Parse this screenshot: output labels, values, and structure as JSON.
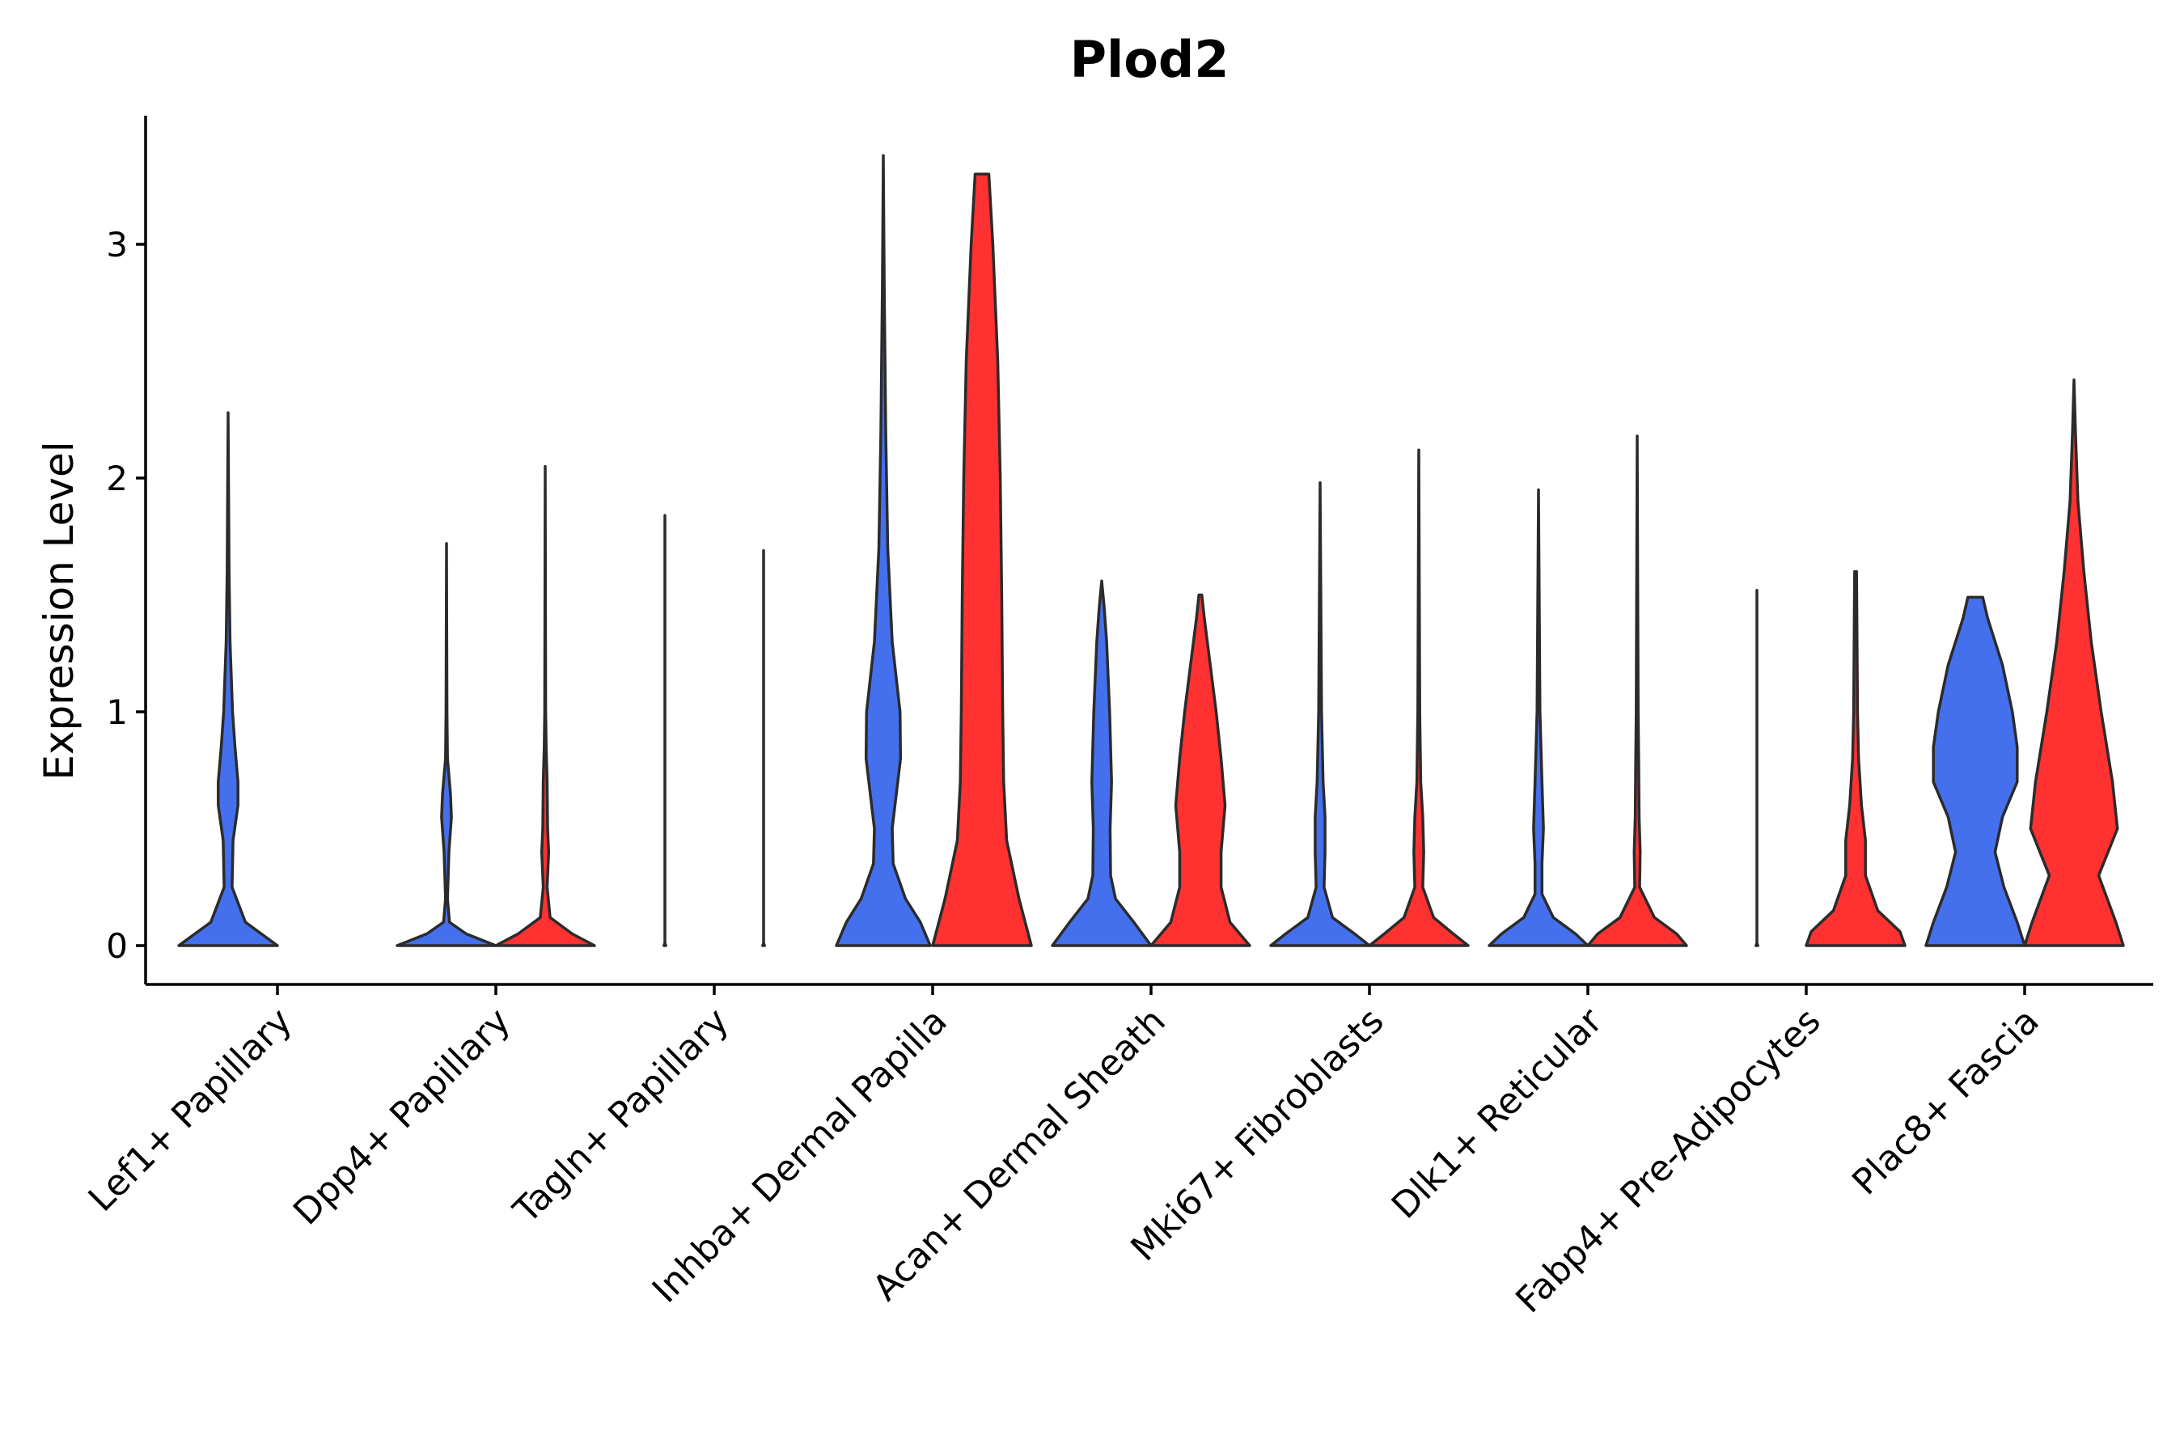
{
  "chart_data": {
    "type": "violin",
    "title": "Plod2",
    "xlabel": "",
    "ylabel": "Expression Level",
    "ylim": [
      -0.17,
      3.55
    ],
    "yticks": [
      0,
      1,
      2,
      3
    ],
    "colors": {
      "group1": "#4470EE",
      "group2": "#FF3131"
    },
    "categories": [
      "Lef1+ Papillary",
      "Dpp4+ Papillary",
      "Tagln+ Papillary",
      "Inhba+ Dermal Papilla",
      "Acan+ Dermal Sheath",
      "Mki67+ Fibroblasts",
      "Dlk1+ Reticular",
      "Fabp4+ Pre-Adipocytes",
      "Plac8+ Fascia"
    ],
    "violins": [
      {
        "category": "Lef1+ Papillary",
        "group": "group1",
        "max": 2.28,
        "profile": [
          [
            0,
            1.0
          ],
          [
            0.1,
            0.35
          ],
          [
            0.25,
            0.08
          ],
          [
            0.45,
            0.1
          ],
          [
            0.6,
            0.2
          ],
          [
            0.7,
            0.2
          ],
          [
            0.85,
            0.14
          ],
          [
            1.0,
            0.09
          ],
          [
            1.3,
            0.04
          ],
          [
            1.6,
            0.02
          ],
          [
            2.28,
            0.0
          ]
        ]
      },
      {
        "category": "Dpp4+ Papillary",
        "group": "group1",
        "max": 1.72,
        "profile": [
          [
            0,
            1.0
          ],
          [
            0.05,
            0.4
          ],
          [
            0.1,
            0.06
          ],
          [
            0.2,
            0.02
          ],
          [
            0.4,
            0.05
          ],
          [
            0.55,
            0.1
          ],
          [
            0.65,
            0.08
          ],
          [
            0.8,
            0.02
          ],
          [
            1.0,
            0.01
          ],
          [
            1.72,
            0.0
          ]
        ]
      },
      {
        "category": "Dpp4+ Papillary",
        "group": "group2",
        "max": 2.05,
        "profile": [
          [
            0,
            1.0
          ],
          [
            0.05,
            0.55
          ],
          [
            0.12,
            0.1
          ],
          [
            0.25,
            0.04
          ],
          [
            0.4,
            0.07
          ],
          [
            0.5,
            0.05
          ],
          [
            0.7,
            0.04
          ],
          [
            0.85,
            0.02
          ],
          [
            1.0,
            0.01
          ],
          [
            2.05,
            0.0
          ]
        ]
      },
      {
        "category": "Tagln+ Papillary",
        "group": "group1",
        "max": 1.84,
        "profile": [
          [
            0,
            0.02
          ],
          [
            0.01,
            0.0
          ],
          [
            1.84,
            0.0
          ]
        ]
      },
      {
        "category": "Tagln+ Papillary",
        "group": "group2",
        "max": 1.69,
        "profile": [
          [
            0,
            0.02
          ],
          [
            0.01,
            0.0
          ],
          [
            1.69,
            0.0
          ]
        ]
      },
      {
        "category": "Inhba+ Dermal Papilla",
        "group": "group1",
        "max": 3.38,
        "profile": [
          [
            0,
            0.95
          ],
          [
            0.1,
            0.75
          ],
          [
            0.2,
            0.45
          ],
          [
            0.35,
            0.2
          ],
          [
            0.5,
            0.18
          ],
          [
            0.8,
            0.35
          ],
          [
            1.0,
            0.34
          ],
          [
            1.3,
            0.18
          ],
          [
            1.7,
            0.09
          ],
          [
            2.2,
            0.05
          ],
          [
            2.8,
            0.02
          ],
          [
            3.38,
            0.0
          ]
        ]
      },
      {
        "category": "Inhba+ Dermal Papilla",
        "group": "group2",
        "max": 3.3,
        "profile": [
          [
            0,
            1.0
          ],
          [
            0.2,
            0.75
          ],
          [
            0.45,
            0.5
          ],
          [
            0.7,
            0.44
          ],
          [
            1.0,
            0.42
          ],
          [
            1.5,
            0.4
          ],
          [
            2.0,
            0.37
          ],
          [
            2.5,
            0.32
          ],
          [
            3.0,
            0.22
          ],
          [
            3.3,
            0.14
          ]
        ]
      },
      {
        "category": "Acan+ Dermal Sheath",
        "group": "group1",
        "max": 1.56,
        "profile": [
          [
            0,
            1.0
          ],
          [
            0.1,
            0.65
          ],
          [
            0.2,
            0.28
          ],
          [
            0.3,
            0.18
          ],
          [
            0.5,
            0.17
          ],
          [
            0.7,
            0.2
          ],
          [
            1.0,
            0.16
          ],
          [
            1.3,
            0.1
          ],
          [
            1.45,
            0.05
          ],
          [
            1.56,
            0.0
          ]
        ]
      },
      {
        "category": "Acan+ Dermal Sheath",
        "group": "group2",
        "max": 1.5,
        "profile": [
          [
            0,
            1.0
          ],
          [
            0.1,
            0.6
          ],
          [
            0.25,
            0.42
          ],
          [
            0.4,
            0.42
          ],
          [
            0.6,
            0.5
          ],
          [
            0.8,
            0.42
          ],
          [
            1.0,
            0.32
          ],
          [
            1.2,
            0.2
          ],
          [
            1.4,
            0.08
          ],
          [
            1.5,
            0.03
          ]
        ]
      },
      {
        "category": "Mki67+ Fibroblasts",
        "group": "group1",
        "max": 1.98,
        "profile": [
          [
            0,
            1.0
          ],
          [
            0.05,
            0.7
          ],
          [
            0.12,
            0.25
          ],
          [
            0.25,
            0.08
          ],
          [
            0.4,
            0.1
          ],
          [
            0.55,
            0.1
          ],
          [
            0.7,
            0.06
          ],
          [
            1.0,
            0.03
          ],
          [
            1.98,
            0.0
          ]
        ]
      },
      {
        "category": "Mki67+ Fibroblasts",
        "group": "group2",
        "max": 2.12,
        "profile": [
          [
            0,
            1.0
          ],
          [
            0.05,
            0.7
          ],
          [
            0.12,
            0.3
          ],
          [
            0.25,
            0.08
          ],
          [
            0.4,
            0.1
          ],
          [
            0.55,
            0.08
          ],
          [
            0.7,
            0.04
          ],
          [
            1.0,
            0.02
          ],
          [
            2.12,
            0.0
          ]
        ]
      },
      {
        "category": "Dlk1+ Reticular",
        "group": "group1",
        "max": 1.95,
        "profile": [
          [
            0,
            1.0
          ],
          [
            0.05,
            0.75
          ],
          [
            0.12,
            0.3
          ],
          [
            0.22,
            0.07
          ],
          [
            0.35,
            0.07
          ],
          [
            0.5,
            0.1
          ],
          [
            0.7,
            0.07
          ],
          [
            1.0,
            0.03
          ],
          [
            1.95,
            0.0
          ]
        ]
      },
      {
        "category": "Dlk1+ Reticular",
        "group": "group2",
        "max": 2.18,
        "profile": [
          [
            0,
            1.0
          ],
          [
            0.05,
            0.8
          ],
          [
            0.12,
            0.35
          ],
          [
            0.25,
            0.05
          ],
          [
            0.4,
            0.06
          ],
          [
            0.55,
            0.04
          ],
          [
            0.8,
            0.03
          ],
          [
            1.0,
            0.02
          ],
          [
            2.18,
            0.0
          ]
        ]
      },
      {
        "category": "Fabp4+ Pre-Adipocytes",
        "group": "group1",
        "max": 1.52,
        "profile": [
          [
            0,
            0.02
          ],
          [
            0.01,
            0.0
          ],
          [
            1.52,
            0.0
          ]
        ]
      },
      {
        "category": "Fabp4+ Pre-Adipocytes",
        "group": "group2",
        "max": 1.6,
        "profile": [
          [
            0,
            1.0
          ],
          [
            0.06,
            0.9
          ],
          [
            0.15,
            0.45
          ],
          [
            0.3,
            0.2
          ],
          [
            0.45,
            0.2
          ],
          [
            0.6,
            0.12
          ],
          [
            0.8,
            0.06
          ],
          [
            1.0,
            0.04
          ],
          [
            1.3,
            0.03
          ],
          [
            1.6,
            0.02
          ]
        ]
      },
      {
        "category": "Plac8+ Fascia",
        "group": "group1",
        "max": 1.49,
        "profile": [
          [
            0,
            1.0
          ],
          [
            0.1,
            0.85
          ],
          [
            0.25,
            0.58
          ],
          [
            0.4,
            0.4
          ],
          [
            0.55,
            0.55
          ],
          [
            0.7,
            0.85
          ],
          [
            0.85,
            0.85
          ],
          [
            1.0,
            0.75
          ],
          [
            1.2,
            0.55
          ],
          [
            1.4,
            0.25
          ],
          [
            1.49,
            0.15
          ]
        ]
      },
      {
        "category": "Plac8+ Fascia",
        "group": "group2",
        "max": 2.42,
        "profile": [
          [
            0,
            1.0
          ],
          [
            0.1,
            0.85
          ],
          [
            0.3,
            0.5
          ],
          [
            0.5,
            0.88
          ],
          [
            0.7,
            0.78
          ],
          [
            1.0,
            0.55
          ],
          [
            1.3,
            0.35
          ],
          [
            1.6,
            0.2
          ],
          [
            1.9,
            0.08
          ],
          [
            2.2,
            0.03
          ],
          [
            2.42,
            0.0
          ]
        ]
      }
    ]
  }
}
